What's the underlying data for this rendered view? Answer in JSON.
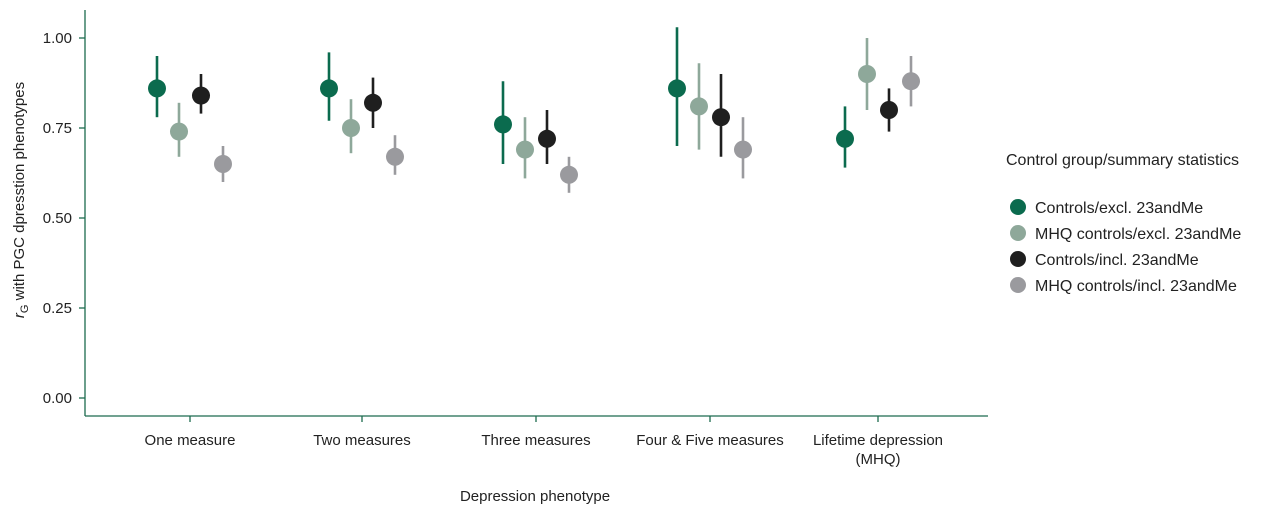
{
  "chart_data": {
    "type": "scatter",
    "title": "",
    "xlabel": "Depression phenotype",
    "ylabel_main": "r",
    "ylabel_sub": "G",
    "ylabel_rest": " with PGC dpresstion phenotypes",
    "ylim": [
      0,
      1.05
    ],
    "yticks": [
      0.0,
      0.25,
      0.5,
      0.75,
      1.0
    ],
    "ytick_labels": [
      "0.00",
      "0.25",
      "0.50",
      "0.75",
      "1.00"
    ],
    "categories": [
      "One measure",
      "Two measures",
      "Three measures",
      "Four & Five measures",
      "Lifetime depression (MHQ)"
    ],
    "category_lines": [
      [
        "One measure"
      ],
      [
        "Two measures"
      ],
      [
        "Three measures"
      ],
      [
        "Four & Five measures"
      ],
      [
        "Lifetime depression",
        "(MHQ)"
      ]
    ],
    "legend_title": "Control group/summary statistics",
    "legend_position": "right",
    "grid": false,
    "axis_color": "#1c6b4f",
    "series": [
      {
        "name": "Controls/excl. 23andMe",
        "color": "#0b6b4e",
        "values": [
          0.86,
          0.86,
          0.76,
          0.86,
          0.72
        ],
        "lower": [
          0.78,
          0.77,
          0.65,
          0.7,
          0.64
        ],
        "upper": [
          0.95,
          0.96,
          0.88,
          1.03,
          0.81
        ]
      },
      {
        "name": "MHQ controls/excl. 23andMe",
        "color": "#8ea89a",
        "values": [
          0.74,
          0.75,
          0.69,
          0.81,
          0.9
        ],
        "lower": [
          0.67,
          0.68,
          0.61,
          0.69,
          0.8
        ],
        "upper": [
          0.82,
          0.83,
          0.78,
          0.93,
          1.0
        ]
      },
      {
        "name": "Controls/incl. 23andMe",
        "color": "#1f1f1f",
        "values": [
          0.84,
          0.82,
          0.72,
          0.78,
          0.8
        ],
        "lower": [
          0.79,
          0.75,
          0.65,
          0.67,
          0.74
        ],
        "upper": [
          0.9,
          0.89,
          0.8,
          0.9,
          0.86
        ]
      },
      {
        "name": "MHQ controls/incl. 23andMe",
        "color": "#9a9a9e",
        "values": [
          0.65,
          0.67,
          0.62,
          0.69,
          0.88
        ],
        "lower": [
          0.6,
          0.62,
          0.57,
          0.61,
          0.81
        ],
        "upper": [
          0.7,
          0.73,
          0.67,
          0.78,
          0.95
        ]
      }
    ]
  }
}
